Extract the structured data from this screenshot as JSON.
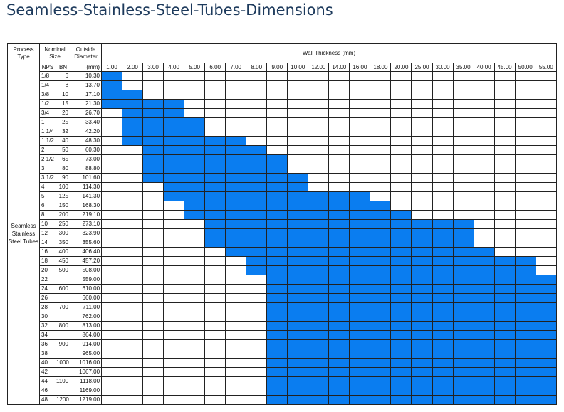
{
  "title": "Seamless-Stainless-Steel-Tubes-Dimensions",
  "table": {
    "headers": {
      "process_type": "Process Type",
      "nominal_size": "Nominal Size",
      "outside_diameter": "Outside Diameter",
      "wall_thickness": "Wall Thickness (mm)",
      "nps": "NPS",
      "dn": "BN",
      "mm": "(mm)"
    },
    "process_type_label": "Seamless Stainless Steel Tubes",
    "wall_thicknesses": [
      "1.00",
      "2.00",
      "3.00",
      "4.00",
      "5.00",
      "6.00",
      "7.00",
      "8.00",
      "9.00",
      "10.00",
      "12.00",
      "14.00",
      "16.00",
      "18.00",
      "20.00",
      "25.00",
      "30.00",
      "35.00",
      "40.00",
      "45.00",
      "50.00",
      "55.00"
    ],
    "fill_color": "#0a7df0",
    "rows": [
      {
        "nps": "1/8",
        "dn": "6",
        "od": "10.30",
        "available_from": 0,
        "available_to": 1
      },
      {
        "nps": "1/4",
        "dn": "8",
        "od": "13.70",
        "available_from": 0,
        "available_to": 1
      },
      {
        "nps": "3/8",
        "dn": "10",
        "od": "17.10",
        "available_from": 0,
        "available_to": 2
      },
      {
        "nps": "1/2",
        "dn": "15",
        "od": "21.30",
        "available_from": 0,
        "available_to": 4
      },
      {
        "nps": "3/4",
        "dn": "20",
        "od": "26.70",
        "available_from": 1,
        "available_to": 4
      },
      {
        "nps": "1",
        "dn": "25",
        "od": "33.40",
        "available_from": 1,
        "available_to": 5
      },
      {
        "nps": "1 1/4",
        "dn": "32",
        "od": "42.20",
        "available_from": 1,
        "available_to": 5
      },
      {
        "nps": "1 1/2",
        "dn": "40",
        "od": "48.30",
        "available_from": 1,
        "available_to": 7
      },
      {
        "nps": "2",
        "dn": "50",
        "od": "60.30",
        "available_from": 2,
        "available_to": 8
      },
      {
        "nps": "2 1/2",
        "dn": "65",
        "od": "73.00",
        "available_from": 2,
        "available_to": 9
      },
      {
        "nps": "3",
        "dn": "80",
        "od": "88.80",
        "available_from": 2,
        "available_to": 9
      },
      {
        "nps": "3 1/2",
        "dn": "90",
        "od": "101.60",
        "available_from": 2,
        "available_to": 10
      },
      {
        "nps": "4",
        "dn": "100",
        "od": "114.30",
        "available_from": 3,
        "available_to": 10
      },
      {
        "nps": "5",
        "dn": "125",
        "od": "141.30",
        "available_from": 3,
        "available_to": 13
      },
      {
        "nps": "6",
        "dn": "150",
        "od": "168.30",
        "available_from": 4,
        "available_to": 14
      },
      {
        "nps": "8",
        "dn": "200",
        "od": "219.10",
        "available_from": 4,
        "available_to": 15
      },
      {
        "nps": "10",
        "dn": "250",
        "od": "273.10",
        "available_from": 5,
        "available_to": 18
      },
      {
        "nps": "12",
        "dn": "300",
        "od": "323.90",
        "available_from": 5,
        "available_to": 18
      },
      {
        "nps": "14",
        "dn": "350",
        "od": "355.60",
        "available_from": 5,
        "available_to": 18
      },
      {
        "nps": "16",
        "dn": "400",
        "od": "406.40",
        "available_from": 6,
        "available_to": 19
      },
      {
        "nps": "18",
        "dn": "450",
        "od": "457.20",
        "available_from": 7,
        "available_to": 21
      },
      {
        "nps": "20",
        "dn": "500",
        "od": "508.00",
        "available_from": 7,
        "available_to": 21
      },
      {
        "nps": "22",
        "dn": "",
        "od": "559.00",
        "available_from": 8,
        "available_to": 22
      },
      {
        "nps": "24",
        "dn": "600",
        "od": "610.00",
        "available_from": 8,
        "available_to": 22
      },
      {
        "nps": "26",
        "dn": "",
        "od": "660.00",
        "available_from": 8,
        "available_to": 22
      },
      {
        "nps": "28",
        "dn": "700",
        "od": "711.00",
        "available_from": 8,
        "available_to": 22
      },
      {
        "nps": "30",
        "dn": "",
        "od": "762.00",
        "available_from": 8,
        "available_to": 22
      },
      {
        "nps": "32",
        "dn": "800",
        "od": "813.00",
        "available_from": 8,
        "available_to": 22
      },
      {
        "nps": "34",
        "dn": "",
        "od": "864.00",
        "available_from": 8,
        "available_to": 22
      },
      {
        "nps": "36",
        "dn": "900",
        "od": "914.00",
        "available_from": 8,
        "available_to": 22
      },
      {
        "nps": "38",
        "dn": "",
        "od": "965.00",
        "available_from": 8,
        "available_to": 22
      },
      {
        "nps": "40",
        "dn": "1000",
        "od": "1016.00",
        "available_from": 8,
        "available_to": 22
      },
      {
        "nps": "42",
        "dn": "",
        "od": "1067.00",
        "available_from": 8,
        "available_to": 22
      },
      {
        "nps": "44",
        "dn": "1100",
        "od": "1118.00",
        "available_from": 8,
        "available_to": 22
      },
      {
        "nps": "46",
        "dn": "",
        "od": "1169.00",
        "available_from": 8,
        "available_to": 22
      },
      {
        "nps": "48",
        "dn": "1200",
        "od": "1219.00",
        "available_from": 8,
        "available_to": 22
      }
    ]
  }
}
